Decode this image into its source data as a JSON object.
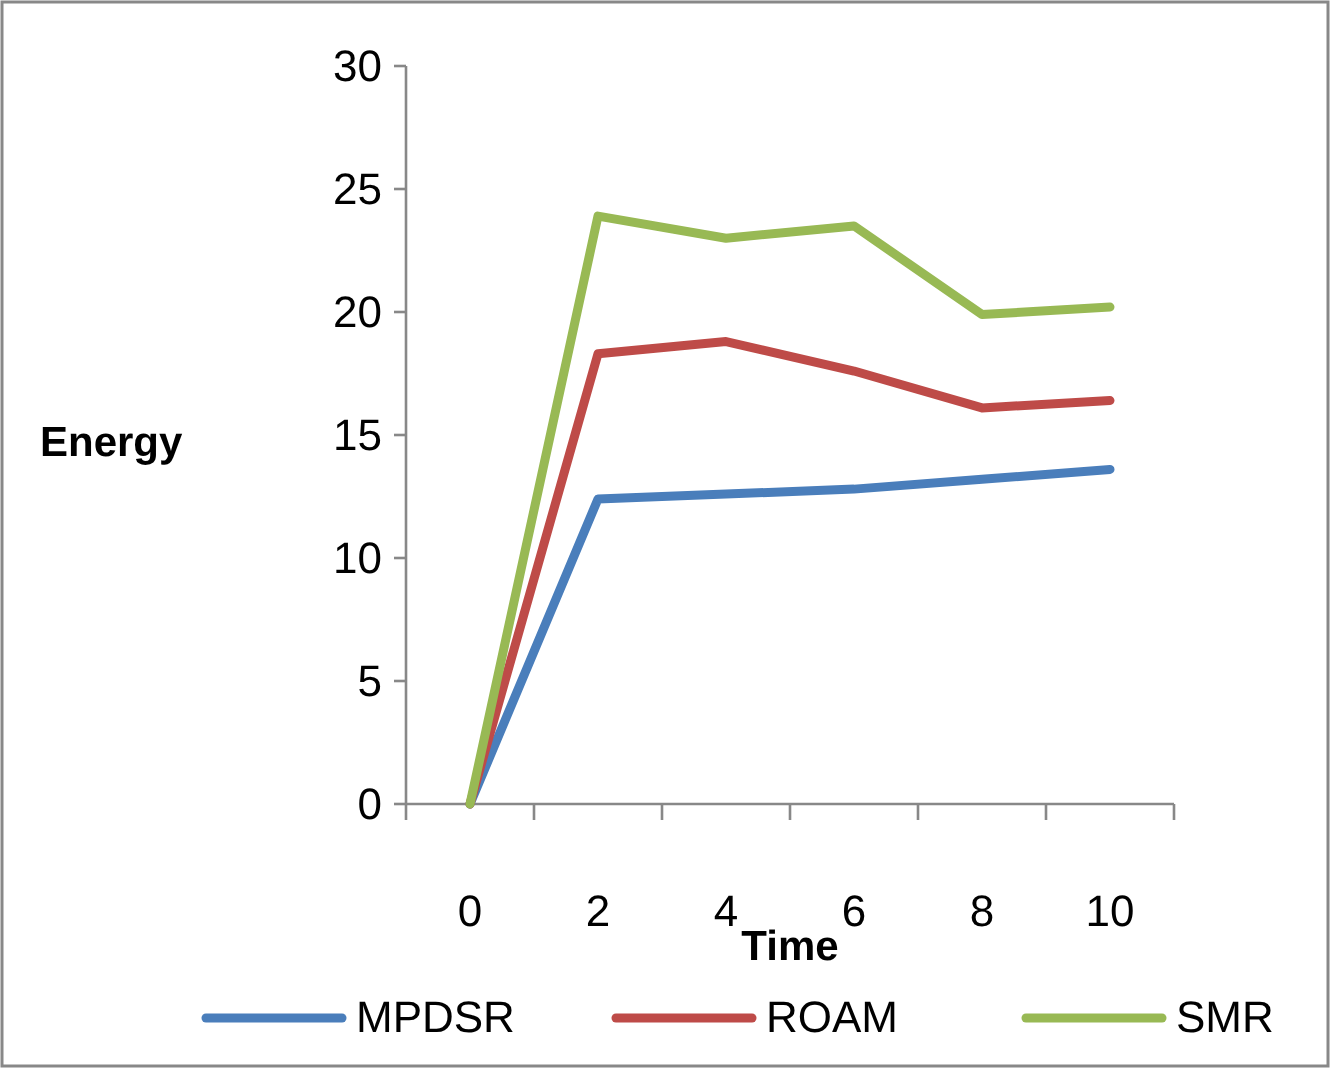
{
  "chart_data": {
    "type": "line",
    "xlabel": "Time",
    "ylabel": "Energy",
    "categories": [
      "0",
      "2",
      "4",
      "6",
      "8",
      "10"
    ],
    "series": [
      {
        "name": "MPDSR",
        "color": "#4a7ebb",
        "values": [
          0,
          12.4,
          12.6,
          12.8,
          13.2,
          13.6
        ]
      },
      {
        "name": "ROAM",
        "color": "#be4b48",
        "values": [
          0,
          18.3,
          18.8,
          17.6,
          16.1,
          16.4
        ]
      },
      {
        "name": "SMR",
        "color": "#98b954",
        "values": [
          0,
          23.9,
          23.0,
          23.5,
          19.9,
          20.2
        ]
      }
    ],
    "ylim": [
      0,
      30
    ],
    "yticks": [
      0,
      5,
      10,
      15,
      20,
      25,
      30
    ],
    "grid": false,
    "legend": "bottom",
    "marker": "none",
    "line_style": "solid"
  }
}
